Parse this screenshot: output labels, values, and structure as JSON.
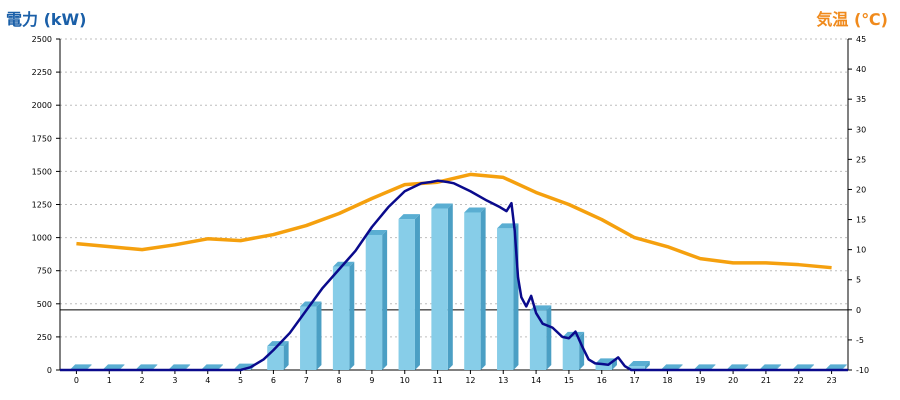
{
  "chart_data": {
    "type": "bar+line",
    "left_axis": {
      "title": "電力 (kW)",
      "min": 0,
      "max": 2500,
      "step": 250,
      "color": "#1a5fa8"
    },
    "right_axis": {
      "title": "気温 (℃)",
      "min": -10,
      "max": 45,
      "step": 5,
      "color": "#f08a1c"
    },
    "categories": [
      "0",
      "1",
      "2",
      "3",
      "4",
      "5",
      "6",
      "7",
      "8",
      "9",
      "10",
      "11",
      "12",
      "13",
      "14",
      "15",
      "16",
      "17",
      "18",
      "19",
      "20",
      "21",
      "22",
      "23"
    ],
    "grid": true,
    "series": [
      {
        "kind": "bar",
        "axis": "left",
        "color": "#87cde8",
        "values": [
          5,
          5,
          5,
          5,
          5,
          10,
          180,
          480,
          780,
          1020,
          1140,
          1220,
          1190,
          1070,
          450,
          250,
          50,
          30,
          5,
          5,
          5,
          5,
          5,
          5
        ]
      },
      {
        "kind": "line",
        "axis": "left",
        "color": "#0a0a8c",
        "points": [
          [
            -0.5,
            0
          ],
          [
            5.0,
            0
          ],
          [
            5.3,
            20
          ],
          [
            5.7,
            80
          ],
          [
            6.0,
            150
          ],
          [
            6.5,
            280
          ],
          [
            7.0,
            450
          ],
          [
            7.5,
            620
          ],
          [
            8.0,
            760
          ],
          [
            8.5,
            900
          ],
          [
            9.0,
            1080
          ],
          [
            9.5,
            1230
          ],
          [
            10.0,
            1350
          ],
          [
            10.5,
            1410
          ],
          [
            10.8,
            1420
          ],
          [
            11.0,
            1430
          ],
          [
            11.3,
            1420
          ],
          [
            11.5,
            1410
          ],
          [
            12.0,
            1350
          ],
          [
            12.5,
            1280
          ],
          [
            12.9,
            1230
          ],
          [
            13.1,
            1200
          ],
          [
            13.25,
            1260
          ],
          [
            13.35,
            1050
          ],
          [
            13.45,
            700
          ],
          [
            13.55,
            550
          ],
          [
            13.7,
            480
          ],
          [
            13.85,
            560
          ],
          [
            14.0,
            430
          ],
          [
            14.2,
            350
          ],
          [
            14.5,
            320
          ],
          [
            14.8,
            250
          ],
          [
            15.0,
            240
          ],
          [
            15.2,
            290
          ],
          [
            15.4,
            180
          ],
          [
            15.6,
            80
          ],
          [
            15.8,
            50
          ],
          [
            16.0,
            45
          ],
          [
            16.2,
            40
          ],
          [
            16.5,
            95
          ],
          [
            16.7,
            30
          ],
          [
            16.9,
            0
          ],
          [
            23.5,
            0
          ]
        ]
      },
      {
        "kind": "line",
        "axis": "right",
        "color": "#f5a00e",
        "values": [
          11.0,
          10.5,
          10.0,
          10.8,
          11.8,
          11.5,
          12.5,
          14.0,
          16.0,
          18.5,
          20.8,
          21.2,
          22.5,
          22.0,
          19.5,
          17.5,
          15.0,
          12.0,
          10.5,
          8.5,
          7.8,
          7.8,
          7.5,
          7.0
        ]
      }
    ]
  }
}
